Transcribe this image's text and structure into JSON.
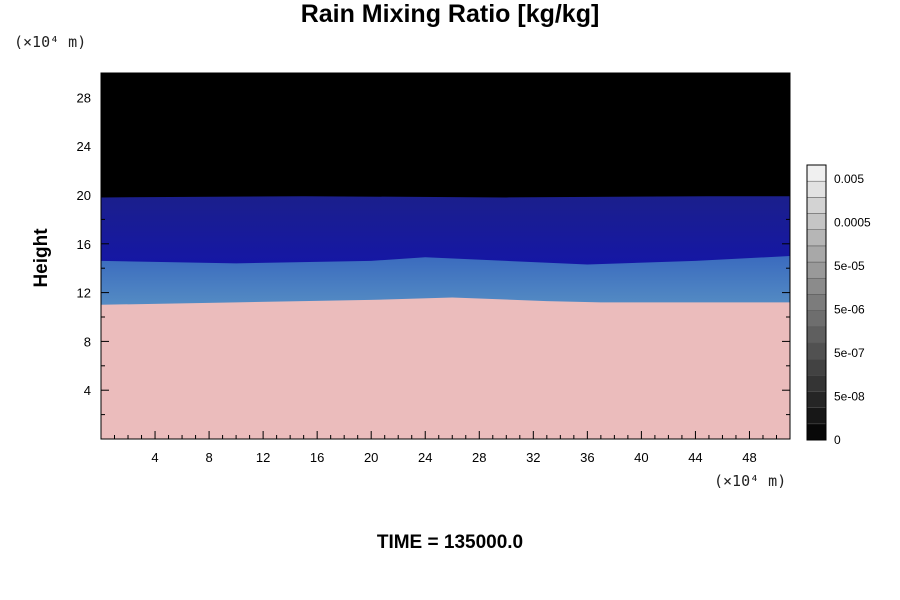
{
  "chart_data": {
    "type": "heatmap",
    "title": "Rain Mixing Ratio [kg/kg]",
    "ylabel": "Height",
    "xlabel": "",
    "y_unit": "(×10⁴ m)",
    "x_unit": "(×10⁴ m)",
    "xlim": [
      0,
      51
    ],
    "ylim": [
      0,
      30
    ],
    "x_ticks": [
      4,
      8,
      12,
      16,
      20,
      24,
      28,
      32,
      36,
      40,
      44,
      48
    ],
    "y_ticks": [
      4,
      8,
      12,
      16,
      20,
      24,
      28
    ],
    "colorbar": {
      "labels": [
        "0.005",
        "0.0005",
        "5e-05",
        "5e-06",
        "5e-07",
        "5e-08",
        "0"
      ],
      "levels": 17
    },
    "field_layers": [
      {
        "name": "lower",
        "color": "#ebbcbc",
        "top_profile": [
          [
            0,
            11.0
          ],
          [
            10,
            11.2
          ],
          [
            20,
            11.4
          ],
          [
            26,
            11.6
          ],
          [
            33,
            11.3
          ],
          [
            37,
            11.2
          ],
          [
            45,
            11.2
          ],
          [
            51,
            11.2
          ]
        ]
      },
      {
        "name": "transition",
        "color": "#7fb4c6",
        "top_profile": [
          [
            0,
            14.6
          ],
          [
            10,
            14.4
          ],
          [
            20,
            14.6
          ],
          [
            24,
            14.9
          ],
          [
            30,
            14.6
          ],
          [
            36,
            14.3
          ],
          [
            44,
            14.6
          ],
          [
            51,
            15.0
          ]
        ]
      },
      {
        "name": "upper",
        "color": "#1a1fb0",
        "top_profile": [
          [
            0,
            19.8
          ],
          [
            15,
            19.9
          ],
          [
            30,
            19.8
          ],
          [
            45,
            19.9
          ],
          [
            51,
            19.9
          ]
        ]
      },
      {
        "name": "background",
        "color": "#000000"
      }
    ],
    "grid": false
  },
  "time_label": "TIME = 135000.0"
}
